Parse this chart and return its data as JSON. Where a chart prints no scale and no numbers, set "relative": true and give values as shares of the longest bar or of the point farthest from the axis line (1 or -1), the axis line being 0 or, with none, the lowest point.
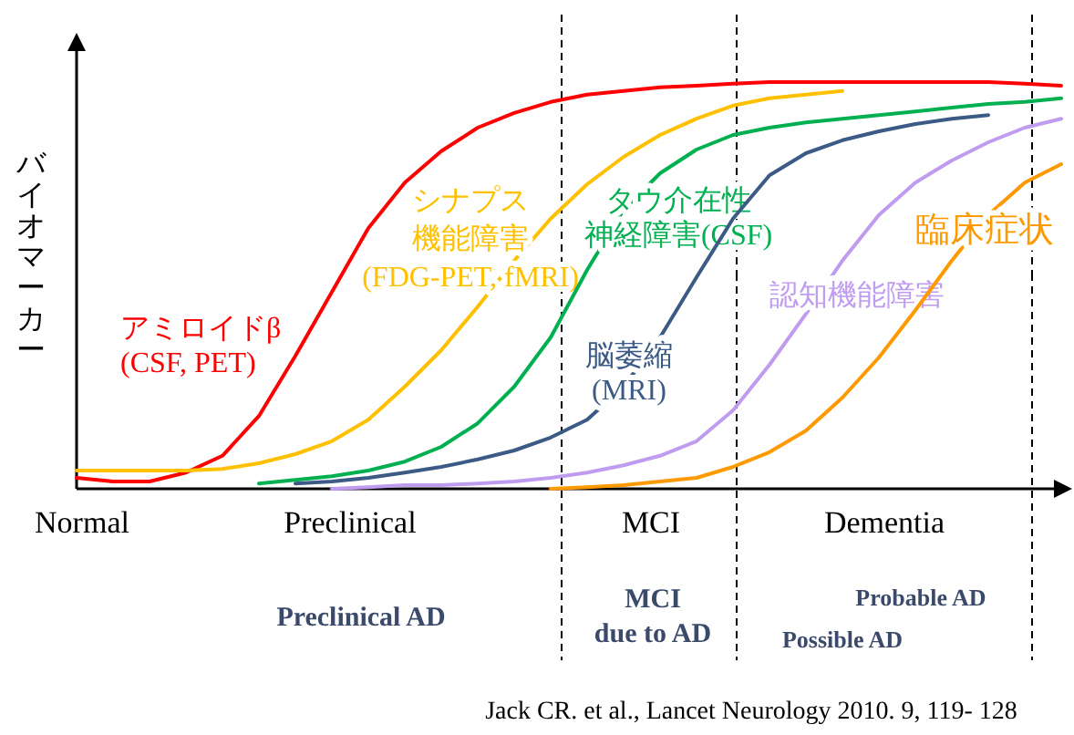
{
  "chart_data": {
    "type": "line",
    "relative": true,
    "ylabel": "バイオマーカー",
    "categories": [
      null,
      null,
      null,
      null,
      null,
      null,
      null,
      null,
      null,
      null,
      null,
      null,
      null,
      null,
      null,
      null,
      null,
      null,
      null,
      null,
      null,
      null,
      null,
      null,
      null,
      null,
      null,
      null
    ],
    "series": [
      {
        "name": "アミロイドβ(CSF, PET)",
        "color": "#ff0000",
        "values": [
          0.027,
          0.018,
          0.018,
          0.04,
          0.081,
          0.179,
          0.327,
          0.484,
          0.641,
          0.753,
          0.83,
          0.888,
          0.924,
          0.951,
          0.969,
          0.978,
          0.987,
          0.991,
          0.996,
          1,
          1,
          1,
          1,
          1,
          1,
          1,
          0.996,
          0.991
        ]
      },
      {
        "name": "シナプス機能障害(FDG-PET, fMRI)",
        "color": "#ffc000",
        "values": [
          0.045,
          0.045,
          0.045,
          0.045,
          0.049,
          0.063,
          0.085,
          0.117,
          0.17,
          0.251,
          0.341,
          0.448,
          0.561,
          0.664,
          0.749,
          0.816,
          0.87,
          0.91,
          0.942,
          0.96,
          0.969,
          0.978,
          null,
          null,
          null,
          null,
          null,
          null
        ]
      },
      {
        "name": "タウ介在性神経障害(CSF)",
        "color": "#00b050",
        "values": [
          null,
          null,
          null,
          null,
          null,
          0.013,
          0.022,
          0.031,
          0.045,
          0.067,
          0.103,
          0.161,
          0.251,
          0.372,
          0.538,
          0.686,
          0.776,
          0.834,
          0.87,
          0.888,
          0.901,
          0.91,
          0.919,
          0.928,
          0.937,
          0.946,
          0.951,
          0.96
        ]
      },
      {
        "name": "脳萎縮(MRI)",
        "color": "#3b5a86",
        "values": [
          null,
          null,
          null,
          null,
          null,
          null,
          0.013,
          0.018,
          0.027,
          0.04,
          0.054,
          0.072,
          0.094,
          0.126,
          0.17,
          0.251,
          0.372,
          0.52,
          0.664,
          0.771,
          0.825,
          0.857,
          0.879,
          0.897,
          0.91,
          0.919,
          null,
          null
        ]
      },
      {
        "name": "認知機能障害",
        "color": "#c09cf0",
        "values": [
          null,
          null,
          null,
          null,
          null,
          null,
          null,
          0,
          0.004,
          0.009,
          0.009,
          0.013,
          0.018,
          0.027,
          0.04,
          0.058,
          0.081,
          0.117,
          0.193,
          0.305,
          0.43,
          0.561,
          0.673,
          0.753,
          0.807,
          0.852,
          0.888,
          0.91
        ]
      },
      {
        "name": "臨床症状",
        "color": "#ff9900",
        "values": [
          null,
          null,
          null,
          null,
          null,
          null,
          null,
          null,
          null,
          null,
          null,
          null,
          null,
          0,
          0.004,
          0.009,
          0.018,
          0.027,
          0.054,
          0.09,
          0.143,
          0.224,
          0.323,
          0.439,
          0.561,
          0.673,
          0.753,
          0.798
        ]
      }
    ],
    "annotations": [
      "Normal",
      "Preclinical",
      "MCI",
      "Dementia",
      "Preclinical AD",
      "MCI\ndue to AD",
      "Probable AD",
      "Possible AD",
      "Jack CR. et al., Lancet Neurology 2010. 9, 119- 128"
    ]
  }
}
